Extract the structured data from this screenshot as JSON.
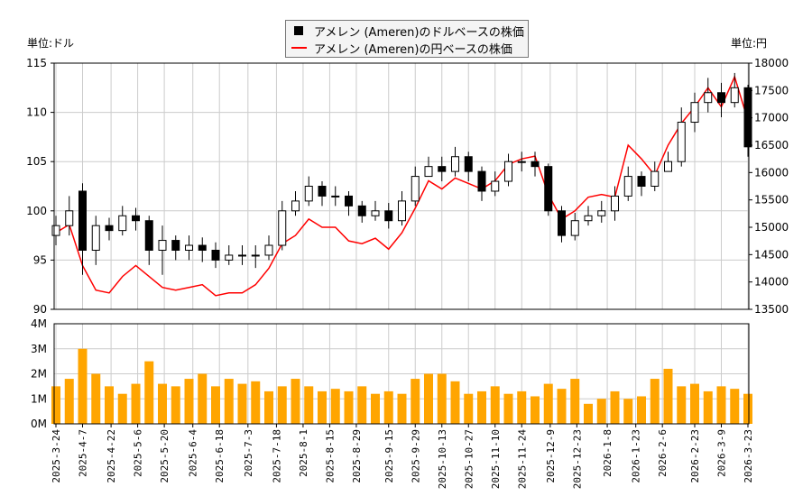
{
  "chart_data": {
    "type": "candlestick+line+bar",
    "legend": {
      "placement": "top-center",
      "entries": [
        "アメレン (Ameren)のドルベースの株価",
        "アメレン (Ameren)の円ベースの株価"
      ]
    },
    "units": {
      "left": "単位:ドル",
      "right": "単位:円"
    },
    "colors": {
      "candle": "#000000",
      "yen_line": "#ff0000",
      "volume": "#ffa500",
      "grid": "#cccccc"
    },
    "grid": true,
    "price_axis": {
      "ylim": [
        90,
        115
      ],
      "ticks": [
        90,
        95,
        100,
        105,
        110,
        115
      ]
    },
    "yen_axis": {
      "ylim": [
        13500,
        18000
      ],
      "ticks": [
        13500,
        14000,
        14500,
        15000,
        15500,
        16000,
        16500,
        17000,
        17500,
        18000
      ]
    },
    "volume_axis": {
      "ylim": [
        0,
        4
      ],
      "ticks": [
        "0M",
        "1M",
        "2M",
        "3M",
        "4M"
      ]
    },
    "x_ticks": [
      "2025-3-24",
      "2025-4-7",
      "2025-4-22",
      "2025-5-6",
      "2025-5-20",
      "2025-6-4",
      "2025-6-18",
      "2025-7-3",
      "2025-7-18",
      "2025-8-1",
      "2025-8-15",
      "2025-8-29",
      "2025-9-15",
      "2025-9-29",
      "2025-10-13",
      "2025-10-27",
      "2025-11-10",
      "2025-11-24",
      "2025-12-9",
      "2025-12-23",
      "2026-1-8",
      "2026-1-23",
      "2026-2-6",
      "2026-2-23",
      "2026-3-9",
      "2026-3-23"
    ],
    "weeks": [
      "2025-3-24",
      "2025-3-31",
      "2025-4-7",
      "2025-4-14",
      "2025-4-21",
      "2025-4-28",
      "2025-5-5",
      "2025-5-12",
      "2025-5-19",
      "2025-5-26",
      "2025-6-2",
      "2025-6-9",
      "2025-6-16",
      "2025-6-23",
      "2025-6-30",
      "2025-7-7",
      "2025-7-14",
      "2025-7-21",
      "2025-7-28",
      "2025-8-4",
      "2025-8-11",
      "2025-8-18",
      "2025-8-25",
      "2025-9-1",
      "2025-9-8",
      "2025-9-15",
      "2025-9-22",
      "2025-9-29",
      "2025-10-6",
      "2025-10-13",
      "2025-10-20",
      "2025-10-27",
      "2025-11-3",
      "2025-11-10",
      "2025-11-17",
      "2025-11-24",
      "2025-12-1",
      "2025-12-8",
      "2025-12-15",
      "2025-12-22",
      "2025-12-29",
      "2026-1-5",
      "2026-1-12",
      "2026-1-19",
      "2026-1-26",
      "2026-2-2",
      "2026-2-9",
      "2026-2-16",
      "2026-2-23",
      "2026-3-2",
      "2026-3-9",
      "2026-3-16",
      "2026-3-23"
    ],
    "usd_close": [
      98.5,
      100,
      96,
      98.5,
      98,
      99.5,
      99,
      96,
      97,
      96,
      96.5,
      96,
      95,
      95.5,
      95.5,
      95.5,
      96.5,
      100,
      101,
      102.5,
      101.5,
      101.5,
      100.5,
      99.5,
      100,
      99,
      101,
      103.5,
      104.5,
      104,
      105.5,
      104,
      102,
      103,
      105,
      105,
      104.5,
      100,
      97.5,
      99,
      99.5,
      100,
      101.5,
      103.5,
      102.5,
      104,
      105,
      109,
      111,
      112,
      111,
      112.5,
      106.5
    ],
    "usd_open": [
      97.5,
      98.5,
      102,
      96,
      98.5,
      98,
      99.5,
      99,
      96,
      97,
      96,
      96.5,
      96,
      95,
      95.5,
      95.5,
      95.5,
      96.5,
      100,
      101,
      102.5,
      101.5,
      101.5,
      100.5,
      99.5,
      100,
      99,
      101,
      103.5,
      104.5,
      104,
      105.5,
      104,
      102,
      103,
      105,
      105,
      104.5,
      100,
      97.5,
      99,
      99.5,
      100,
      101.5,
      103.5,
      102.5,
      104,
      105,
      109,
      111,
      112,
      111,
      112.5
    ],
    "usd_high": [
      99.5,
      101.5,
      102.8,
      99.5,
      99.3,
      100.5,
      100.3,
      99.5,
      98.5,
      97.5,
      97.5,
      97.3,
      96.8,
      96.5,
      96.5,
      96.5,
      97.5,
      101,
      102,
      103.5,
      103,
      102.5,
      102,
      101,
      101,
      100.8,
      102,
      104.5,
      105.5,
      105.5,
      106.5,
      106,
      104.5,
      104,
      105.8,
      106,
      106,
      104.8,
      100.5,
      99.8,
      100.5,
      101,
      102.5,
      104.5,
      104,
      105,
      106,
      110.5,
      112,
      113.5,
      113,
      114,
      112.8
    ],
    "usd_low": [
      96.5,
      97.5,
      93.5,
      94.5,
      97,
      97.5,
      98,
      94.5,
      93.5,
      95,
      95,
      94.8,
      94.2,
      94.5,
      94.5,
      94.2,
      95,
      96,
      99.5,
      100.5,
      100.5,
      100.5,
      99.5,
      98.8,
      99,
      98.2,
      98.5,
      100.5,
      103.5,
      103,
      103.5,
      103,
      101,
      101.5,
      102.5,
      104,
      103.5,
      99.5,
      96.8,
      97,
      98.5,
      98.8,
      99,
      101,
      101.5,
      102,
      104,
      104.5,
      108,
      110,
      109.5,
      110.5,
      105.5
    ],
    "jpy_close": [
      14900,
      15050,
      14300,
      13850,
      13800,
      14100,
      14300,
      14100,
      13900,
      13850,
      13900,
      13950,
      13750,
      13800,
      13800,
      13950,
      14250,
      14700,
      14850,
      15150,
      15000,
      15000,
      14750,
      14700,
      14800,
      14600,
      14900,
      15350,
      15850,
      15700,
      15900,
      15800,
      15700,
      15850,
      16150,
      16250,
      16300,
      15600,
      15150,
      15300,
      15550,
      15600,
      15550,
      16500,
      16250,
      15950,
      16500,
      16900,
      17200,
      17550,
      17200,
      17750,
      16950
    ],
    "volume_m": [
      1.5,
      1.8,
      3.0,
      2.0,
      1.5,
      1.2,
      1.6,
      2.5,
      1.6,
      1.5,
      1.8,
      2.0,
      1.5,
      1.8,
      1.6,
      1.7,
      1.3,
      1.5,
      1.8,
      1.5,
      1.3,
      1.4,
      1.3,
      1.5,
      1.2,
      1.3,
      1.2,
      1.8,
      2.0,
      2.0,
      1.7,
      1.2,
      1.3,
      1.5,
      1.2,
      1.3,
      1.1,
      1.6,
      1.4,
      1.8,
      0.8,
      1.0,
      1.3,
      1.0,
      1.1,
      1.8,
      2.2,
      1.5,
      1.6,
      1.3,
      1.5,
      1.4,
      1.2
    ]
  }
}
